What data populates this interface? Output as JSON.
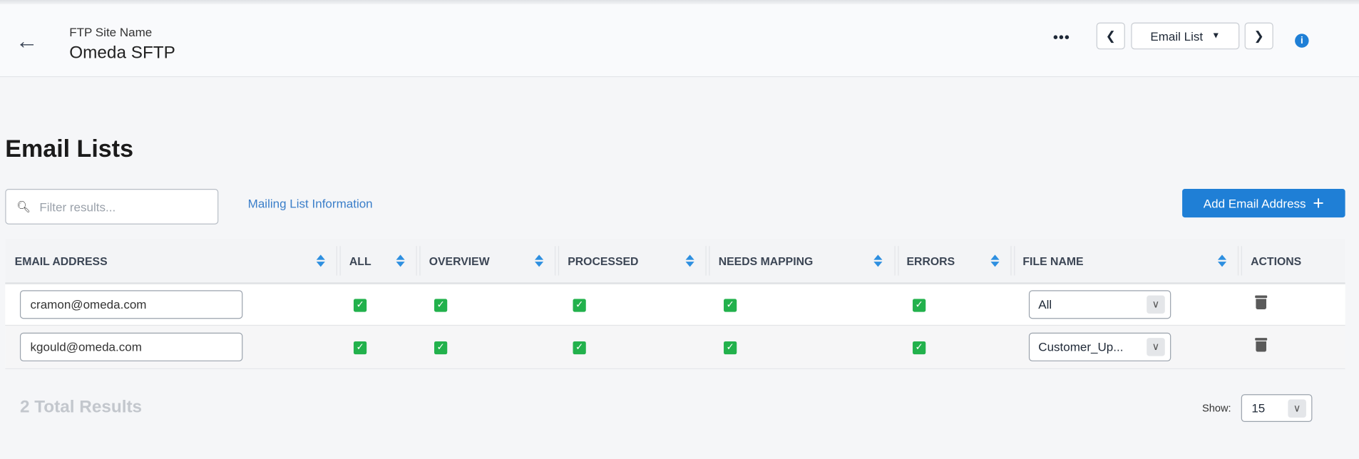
{
  "header": {
    "site_label": "FTP Site Name",
    "site_name": "Omeda SFTP",
    "more": "•••",
    "nav_select": "Email List",
    "info": "i"
  },
  "page": {
    "title": "Email Lists",
    "filter_placeholder": "Filter results...",
    "link": "Mailing List Information",
    "add_button": "Add Email Address",
    "add_icon": "+"
  },
  "table": {
    "columns": [
      "EMAIL ADDRESS",
      "ALL",
      "OVERVIEW",
      "PROCESSED",
      "NEEDS MAPPING",
      "ERRORS",
      "FILE NAME",
      "ACTIONS"
    ],
    "rows": [
      {
        "email": "cramon@omeda.com",
        "all": true,
        "overview": true,
        "processed": true,
        "needs_mapping": true,
        "errors": true,
        "file_name": "All"
      },
      {
        "email": "kgould@omeda.com",
        "all": true,
        "overview": true,
        "processed": true,
        "needs_mapping": true,
        "errors": true,
        "file_name": "Customer_Up..."
      }
    ]
  },
  "footer": {
    "total": "2 Total Results",
    "show_label": "Show:",
    "show_value": "15"
  },
  "colors": {
    "accent": "#1f7fd6",
    "check": "#22b14c"
  }
}
